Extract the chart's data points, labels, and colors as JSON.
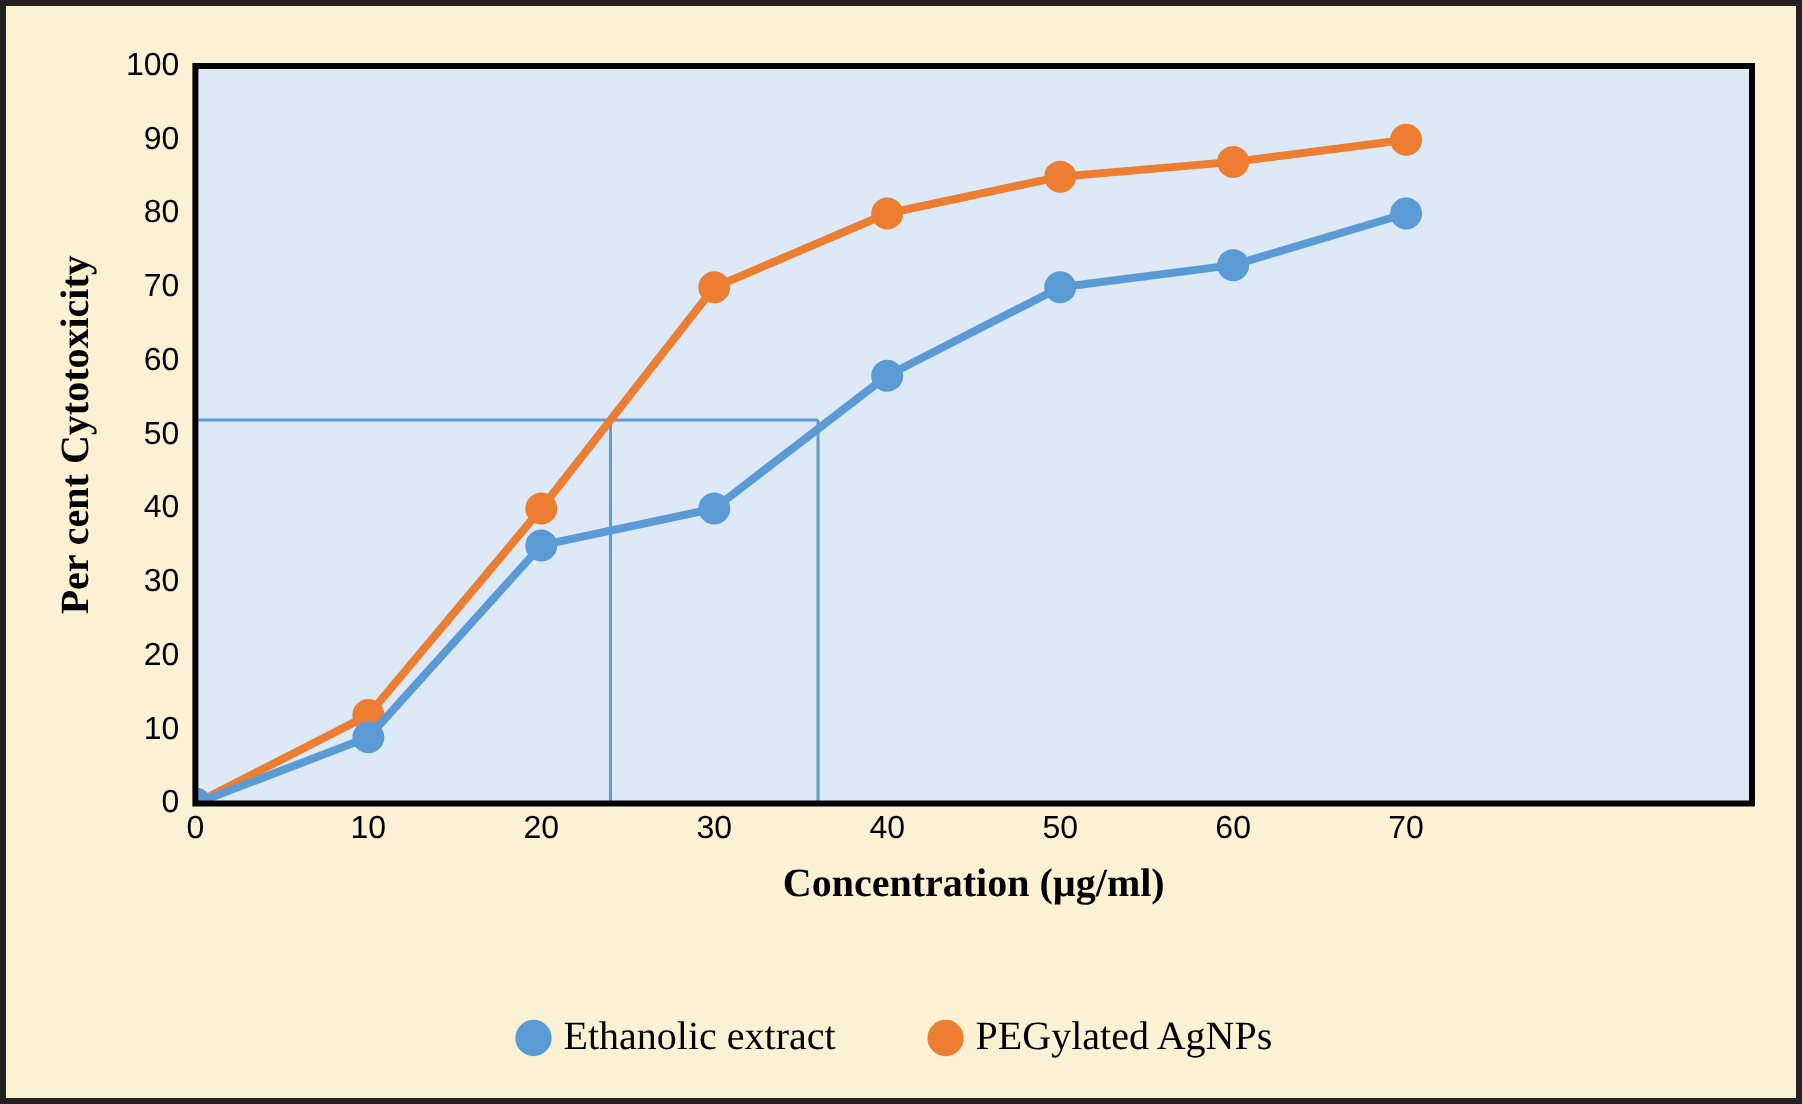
{
  "chart_data": {
    "type": "line",
    "xlabel": "Concentration (µg/ml)",
    "ylabel": "Per cent Cytotoxicity",
    "x": [
      0,
      10,
      20,
      30,
      40,
      50,
      60,
      70
    ],
    "series": [
      {
        "name": "Ethanolic extract",
        "color": "#5b9bd5",
        "values": [
          0,
          9,
          35,
          40,
          58,
          70,
          73,
          80
        ]
      },
      {
        "name": "PEGylated AgNPs",
        "color": "#ed7d31",
        "values": [
          0,
          12,
          40,
          70,
          80,
          85,
          87,
          90
        ]
      }
    ],
    "xlim": [
      0,
      90
    ],
    "xticks": [
      0,
      10,
      20,
      30,
      40,
      50,
      60,
      70
    ],
    "ylim": [
      0,
      100
    ],
    "yticks": [
      0,
      10,
      20,
      30,
      40,
      50,
      60,
      70,
      80,
      90,
      100
    ],
    "ref_lines": [
      {
        "axis": "y",
        "value": 52,
        "color": "#5b9bd5"
      },
      {
        "axis": "x",
        "value": 24,
        "color": "#5b9bd5"
      },
      {
        "axis": "x",
        "value": 36,
        "color": "#5b9bd5"
      }
    ],
    "grid": false,
    "legend": "bottom",
    "marker": "circle",
    "line_style": "solid"
  }
}
